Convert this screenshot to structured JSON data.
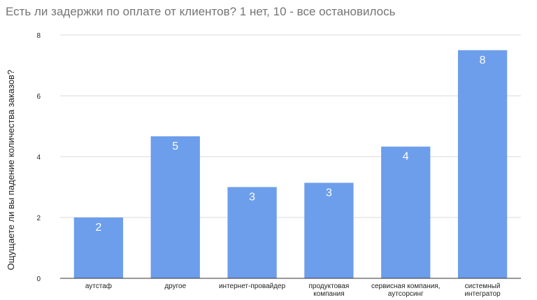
{
  "chart_data": {
    "type": "bar",
    "title": "Есть ли задержки по оплате от клиентов? 1 нет, 10 - все остановилось",
    "xlabel": "",
    "ylabel": "Ощущаете ли вы падение количества заказов?",
    "categories": [
      [
        "аутстаф"
      ],
      [
        "другое"
      ],
      [
        "интернет-провайдер"
      ],
      [
        "продуктовая",
        "компания"
      ],
      [
        "сервисная компания,",
        "аутсорсинг"
      ],
      [
        "системный",
        "интегратор"
      ]
    ],
    "values": [
      2.0,
      4.67,
      3.0,
      3.14,
      4.33,
      7.5
    ],
    "data_labels": [
      "2",
      "5",
      "3",
      "3",
      "4",
      "8"
    ],
    "ylim": [
      0,
      8
    ],
    "yticks": [
      0,
      2,
      4,
      6,
      8
    ],
    "grid": true,
    "legend": "none",
    "colors": {
      "bar": "#6d9eeb",
      "grid": "#d9d9d9",
      "axis": "#333333",
      "title": "#757575",
      "label": "#ffffff"
    }
  }
}
